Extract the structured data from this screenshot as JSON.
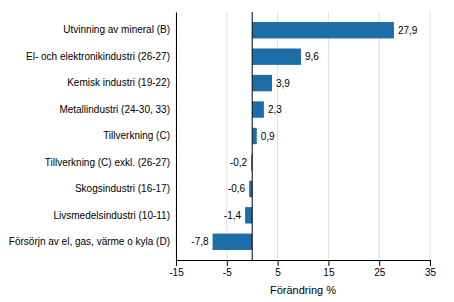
{
  "chart_data": {
    "type": "bar",
    "orientation": "horizontal",
    "categories": [
      "Försörjn av el, gas, värme o kyla (D)",
      "Livsmedelsindustri (10-11)",
      "Skogsindustri (16-17)",
      "Tillverkning (C) exkl. (26-27)",
      "Tillverkning (C)",
      "Metallindustri (24-30, 33)",
      "Kemisk industri (19-22)",
      "El- och elektronikindustri (26-27)",
      "Utvinning av mineral (B)"
    ],
    "values": [
      -7.8,
      -1.4,
      -0.6,
      -0.2,
      0.9,
      2.3,
      3.9,
      9.6,
      27.9
    ],
    "value_labels": [
      "-7,8",
      "-1,4",
      "-0,6",
      "-0,2",
      "0,9",
      "2,3",
      "3,9",
      "9,6",
      "27,9"
    ],
    "data_labels": true,
    "color": "#1c6da8",
    "xlabel": "Förändring %",
    "xlim": [
      -15,
      35
    ],
    "xticks": [
      -15,
      -5,
      5,
      15,
      25,
      35
    ],
    "grid": true
  }
}
